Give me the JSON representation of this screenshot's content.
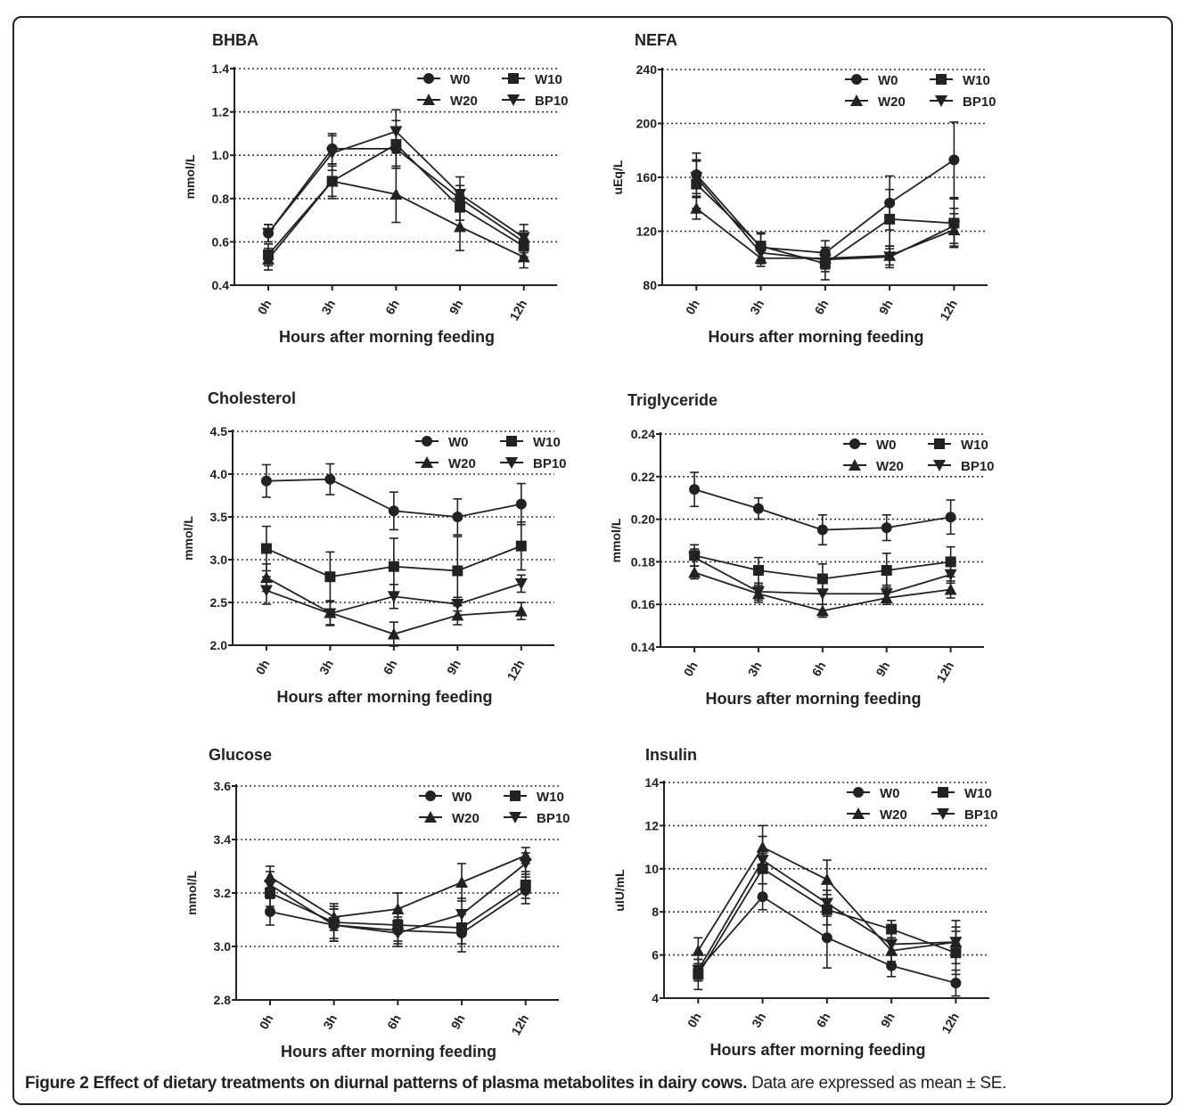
{
  "caption": {
    "bold": "Figure 2 Effect of dietary treatments on diurnal patterns of plasma metabolites in dairy cows.",
    "normal": " Data are expressed as mean ± SE."
  },
  "chart_data": [
    {
      "type": "line",
      "title": "BHBA",
      "xlabel": "Hours after morning feeding",
      "ylabel": "mmol/L",
      "categories": [
        "0h",
        "3h",
        "6h",
        "9h",
        "12h"
      ],
      "ylim": [
        0.4,
        1.4
      ],
      "yticks": [
        "0.4",
        "0.6",
        "0.8",
        "1.0",
        "1.2",
        "1.4"
      ],
      "grid": "horizontal dotted",
      "legend": "top-right",
      "series": [
        {
          "name": "W0",
          "marker": "circle",
          "values": [
            0.64,
            1.03,
            1.03,
            0.8,
            0.6
          ],
          "se": [
            0.04,
            0.07,
            0.09,
            0.06,
            0.05
          ]
        },
        {
          "name": "W10",
          "marker": "square",
          "values": [
            0.54,
            0.88,
            1.05,
            0.76,
            0.58
          ],
          "se": [
            0.05,
            0.08,
            0.11,
            0.06,
            0.05
          ]
        },
        {
          "name": "W20",
          "marker": "triangle-up",
          "values": [
            0.52,
            0.88,
            0.82,
            0.67,
            0.53
          ],
          "se": [
            0.05,
            0.07,
            0.13,
            0.11,
            0.05
          ]
        },
        {
          "name": "BP10",
          "marker": "triangle-down",
          "values": [
            0.64,
            1.01,
            1.11,
            0.82,
            0.62
          ],
          "se": [
            0.04,
            0.08,
            0.1,
            0.08,
            0.06
          ]
        }
      ]
    },
    {
      "type": "line",
      "title": "NEFA",
      "xlabel": "Hours after morning feeding",
      "ylabel": "uEq/L",
      "categories": [
        "0h",
        "3h",
        "6h",
        "9h",
        "12h"
      ],
      "ylim": [
        80,
        240
      ],
      "yticks": [
        "80",
        "120",
        "160",
        "200",
        "240"
      ],
      "grid": "horizontal dotted",
      "legend": "top-right",
      "series": [
        {
          "name": "W0",
          "marker": "circle",
          "values": [
            162,
            108,
            104,
            141,
            173
          ],
          "se": [
            16,
            10,
            9,
            20,
            28
          ]
        },
        {
          "name": "W10",
          "marker": "square",
          "values": [
            155,
            109,
            96,
            129,
            126
          ],
          "se": [
            18,
            10,
            12,
            22,
            18
          ]
        },
        {
          "name": "W20",
          "marker": "triangle-up",
          "values": [
            137,
            100,
            100,
            102,
            121
          ],
          "se": [
            8,
            6,
            8,
            7,
            12
          ]
        },
        {
          "name": "BP10",
          "marker": "triangle-down",
          "values": [
            160,
            104,
            99,
            101,
            124
          ],
          "se": [
            12,
            8,
            9,
            8,
            13
          ]
        }
      ]
    },
    {
      "type": "line",
      "title": "Cholesterol",
      "xlabel": "Hours after morning feeding",
      "ylabel": "mmol/L",
      "categories": [
        "0h",
        "3h",
        "6h",
        "9h",
        "12h"
      ],
      "ylim": [
        2.0,
        4.5
      ],
      "yticks": [
        "2.0",
        "2.5",
        "3.0",
        "3.5",
        "4.0",
        "4.5"
      ],
      "grid": "horizontal dotted",
      "legend": "top-right",
      "series": [
        {
          "name": "W0",
          "marker": "circle",
          "values": [
            3.92,
            3.94,
            3.57,
            3.5,
            3.65
          ],
          "se": [
            0.19,
            0.18,
            0.22,
            0.21,
            0.24
          ]
        },
        {
          "name": "W10",
          "marker": "square",
          "values": [
            3.13,
            2.8,
            2.92,
            2.87,
            3.16
          ],
          "se": [
            0.26,
            0.29,
            0.33,
            0.4,
            0.28
          ]
        },
        {
          "name": "W20",
          "marker": "triangle-up",
          "values": [
            2.79,
            2.38,
            2.13,
            2.35,
            2.4
          ],
          "se": [
            0.16,
            0.14,
            0.14,
            0.11,
            0.1
          ]
        },
        {
          "name": "BP10",
          "marker": "triangle-down",
          "values": [
            2.64,
            2.37,
            2.57,
            2.48,
            2.72
          ],
          "se": [
            0.16,
            0.14,
            0.14,
            0.08,
            0.1
          ]
        }
      ]
    },
    {
      "type": "line",
      "title": "Triglyceride",
      "xlabel": "Hours after morning feeding",
      "ylabel": "mmol/L",
      "categories": [
        "0h",
        "3h",
        "6h",
        "9h",
        "12h"
      ],
      "ylim": [
        0.14,
        0.24
      ],
      "yticks": [
        "0.14",
        "0.16",
        "0.18",
        "0.20",
        "0.22",
        "0.24"
      ],
      "grid": "horizontal dotted",
      "legend": "top-right",
      "series": [
        {
          "name": "W0",
          "marker": "circle",
          "values": [
            0.214,
            0.205,
            0.195,
            0.196,
            0.201
          ],
          "se": [
            0.008,
            0.005,
            0.007,
            0.006,
            0.008
          ]
        },
        {
          "name": "W10",
          "marker": "square",
          "values": [
            0.183,
            0.176,
            0.172,
            0.176,
            0.18
          ],
          "se": [
            0.005,
            0.006,
            0.007,
            0.008,
            0.007
          ]
        },
        {
          "name": "W20",
          "marker": "triangle-up",
          "values": [
            0.175,
            0.165,
            0.157,
            0.163,
            0.167
          ],
          "se": [
            0.003,
            0.004,
            0.003,
            0.003,
            0.004
          ]
        },
        {
          "name": "BP10",
          "marker": "triangle-down",
          "values": [
            0.182,
            0.166,
            0.165,
            0.165,
            0.174
          ],
          "se": [
            0.004,
            0.004,
            0.005,
            0.004,
            0.004
          ]
        }
      ]
    },
    {
      "type": "line",
      "title": "Glucose",
      "xlabel": "Hours after morning feeding",
      "ylabel": "mmol/L",
      "categories": [
        "0h",
        "3h",
        "6h",
        "9h",
        "12h"
      ],
      "ylim": [
        2.8,
        3.6
      ],
      "yticks": [
        "2.8",
        "3.0",
        "3.2",
        "3.4",
        "3.6"
      ],
      "grid": "horizontal dotted",
      "legend": "top-right",
      "series": [
        {
          "name": "W0",
          "marker": "circle",
          "values": [
            3.13,
            3.08,
            3.06,
            3.05,
            3.21
          ],
          "se": [
            0.05,
            0.06,
            0.05,
            0.07,
            0.05
          ]
        },
        {
          "name": "W10",
          "marker": "square",
          "values": [
            3.2,
            3.09,
            3.08,
            3.07,
            3.23
          ],
          "se": [
            0.05,
            0.06,
            0.06,
            0.06,
            0.05
          ]
        },
        {
          "name": "W20",
          "marker": "triangle-up",
          "values": [
            3.26,
            3.11,
            3.14,
            3.24,
            3.34
          ],
          "se": [
            0.04,
            0.05,
            0.06,
            0.07,
            0.03
          ]
        },
        {
          "name": "BP10",
          "marker": "triangle-down",
          "values": [
            3.23,
            3.08,
            3.05,
            3.12,
            3.31
          ],
          "se": [
            0.05,
            0.06,
            0.05,
            0.06,
            0.04
          ]
        }
      ]
    },
    {
      "type": "line",
      "title": "Insulin",
      "xlabel": "Hours after morning feeding",
      "ylabel": "uIU/mL",
      "categories": [
        "0h",
        "3h",
        "6h",
        "9h",
        "12h"
      ],
      "ylim": [
        4,
        14
      ],
      "yticks": [
        "4",
        "6",
        "8",
        "10",
        "12",
        "14"
      ],
      "grid": "horizontal dotted",
      "legend": "top-right",
      "series": [
        {
          "name": "W0",
          "marker": "circle",
          "values": [
            5.3,
            8.7,
            6.8,
            5.5,
            4.7
          ],
          "se": [
            0.5,
            0.6,
            1.4,
            0.5,
            0.6
          ]
        },
        {
          "name": "W10",
          "marker": "square",
          "values": [
            5.1,
            10.0,
            8.1,
            7.2,
            6.1
          ],
          "se": [
            0.7,
            0.7,
            0.7,
            0.4,
            1.0
          ]
        },
        {
          "name": "W20",
          "marker": "triangle-up",
          "values": [
            6.2,
            11.0,
            9.5,
            6.2,
            6.6
          ],
          "se": [
            0.6,
            1.0,
            0.9,
            0.5,
            1.0
          ]
        },
        {
          "name": "BP10",
          "marker": "triangle-down",
          "values": [
            5.3,
            10.4,
            8.4,
            6.5,
            6.6
          ],
          "se": [
            0.5,
            1.1,
            0.6,
            0.5,
            0.7
          ]
        }
      ]
    }
  ]
}
